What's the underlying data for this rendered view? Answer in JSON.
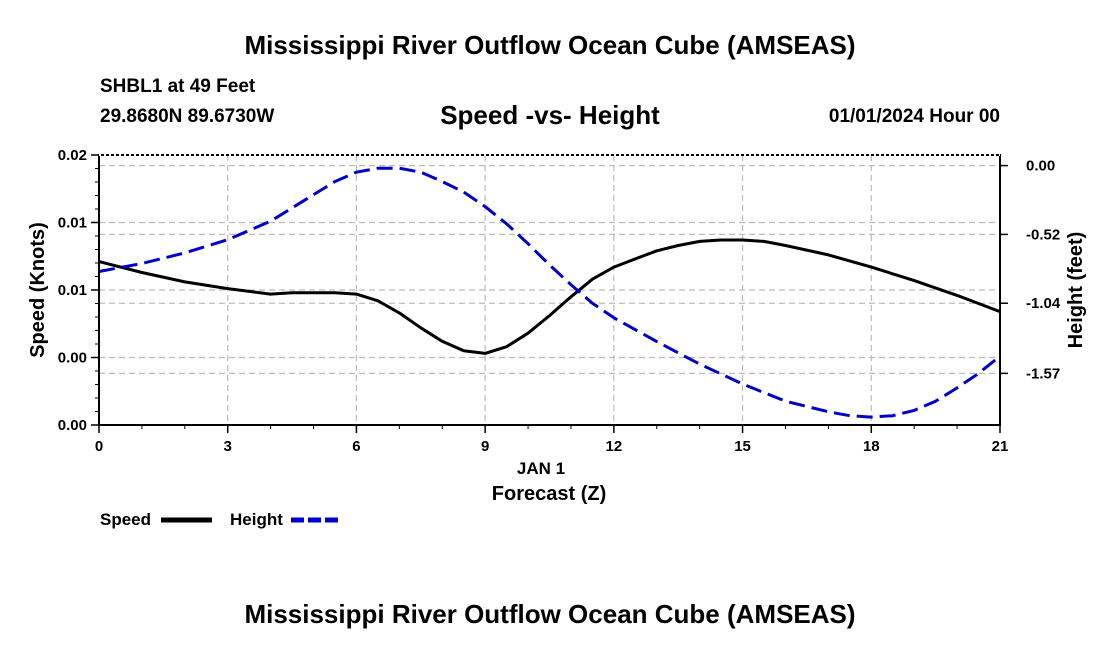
{
  "header": {
    "title": "Mississippi River Outflow Ocean Cube (AMSEAS)",
    "station": "SHBL1 at 49 Feet",
    "coords": "29.8680N  89.6730W",
    "chart_title": "Speed -vs- Height",
    "datetime": "01/01/2024 Hour 00"
  },
  "footer": {
    "title": "Mississippi River Outflow Ocean Cube (AMSEAS)"
  },
  "colors": {
    "speed": "#000000",
    "height": "#0000cc",
    "grid": "#bbbbbb"
  },
  "chart_data": {
    "type": "line",
    "title": "Speed -vs- Height",
    "xlabel": "Forecast (Z)",
    "xsublabel": "JAN 1",
    "ylabel": "Speed (Knots)",
    "y2label": "Height (feet)",
    "x_ticks": [
      0,
      3,
      6,
      9,
      12,
      15,
      18,
      21
    ],
    "x_tick_labels": [
      "0",
      "3",
      "6",
      "9",
      "12",
      "15",
      "18",
      "21"
    ],
    "xlim": [
      0,
      21
    ],
    "y_ticks": [
      0,
      0.005,
      0.01,
      0.015,
      0.02
    ],
    "y_tick_labels": [
      "0.00",
      "0.00",
      "0.01",
      "0.01",
      "0.02"
    ],
    "ylim": [
      0,
      0.02
    ],
    "y2_ticks": [
      0.0,
      -0.52,
      -1.04,
      -1.57
    ],
    "y2_tick_labels": [
      "0.00",
      "-0.52",
      "-1.04",
      "-1.57"
    ],
    "y2lim": [
      -1.96,
      0.08
    ],
    "legend": {
      "placement": "bottom-left",
      "speed_label": "Speed",
      "height_label": "Height"
    },
    "series": [
      {
        "name": "Speed",
        "axis": "left",
        "style": "solid",
        "x": [
          0,
          1,
          2,
          3,
          4,
          4.5,
          5,
          5.5,
          6,
          6.5,
          7,
          7.5,
          8,
          8.5,
          9,
          9.5,
          10,
          10.5,
          11,
          11.5,
          12,
          12.5,
          13,
          13.5,
          14,
          14.5,
          15,
          15.5,
          16,
          17,
          18,
          19,
          20,
          21
        ],
        "values": [
          0.0121,
          0.0113,
          0.0106,
          0.0101,
          0.0097,
          0.0098,
          0.0098,
          0.0098,
          0.0097,
          0.0092,
          0.0083,
          0.0072,
          0.0062,
          0.0055,
          0.0053,
          0.0058,
          0.0068,
          0.0081,
          0.0095,
          0.0108,
          0.0117,
          0.0123,
          0.0129,
          0.0133,
          0.0136,
          0.0137,
          0.0137,
          0.0136,
          0.0133,
          0.0126,
          0.0117,
          0.0107,
          0.0096,
          0.0084
        ]
      },
      {
        "name": "Height",
        "axis": "right",
        "style": "dashed",
        "x": [
          0,
          1,
          2,
          3,
          4,
          5,
          5.5,
          6,
          6.5,
          7,
          7.5,
          8,
          8.5,
          9,
          9.5,
          10,
          10.5,
          11,
          11.5,
          12,
          13,
          14,
          15,
          16,
          17,
          17.5,
          18,
          18.5,
          19,
          19.5,
          20,
          20.5,
          21
        ],
        "values": [
          -0.8,
          -0.74,
          -0.66,
          -0.56,
          -0.42,
          -0.22,
          -0.12,
          -0.05,
          -0.02,
          -0.02,
          -0.05,
          -0.12,
          -0.2,
          -0.31,
          -0.44,
          -0.59,
          -0.75,
          -0.9,
          -1.04,
          -1.15,
          -1.33,
          -1.5,
          -1.65,
          -1.78,
          -1.86,
          -1.89,
          -1.9,
          -1.89,
          -1.85,
          -1.78,
          -1.68,
          -1.57,
          -1.44
        ]
      }
    ]
  }
}
